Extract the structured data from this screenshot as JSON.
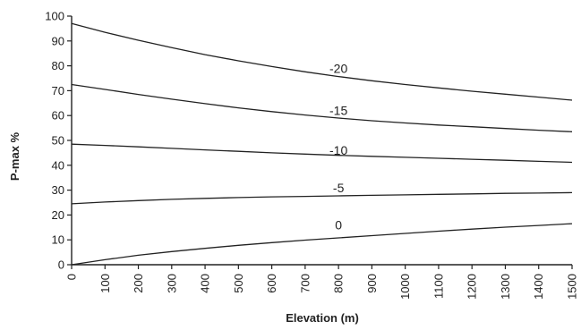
{
  "chart_data": {
    "type": "line",
    "title": "",
    "xlabel": "Elevation (m)",
    "ylabel": "P-max  %",
    "xlim": [
      0,
      1500
    ],
    "ylim": [
      0,
      100
    ],
    "x_ticks": [
      "0",
      "100",
      "200",
      "300",
      "400",
      "500",
      "600",
      "700",
      "800",
      "900",
      "1000",
      "1100",
      "1200",
      "1300",
      "1400",
      "1500"
    ],
    "y_ticks": [
      "0",
      "10",
      "20",
      "30",
      "40",
      "50",
      "60",
      "70",
      "80",
      "90",
      "100"
    ],
    "grid": false,
    "legend": "none",
    "x": [
      0,
      100,
      200,
      300,
      400,
      500,
      600,
      700,
      800,
      900,
      1000,
      1100,
      1200,
      1300,
      1400,
      1500
    ],
    "series": [
      {
        "name": "-20",
        "label_at": [
          800,
          79
        ],
        "values": [
          97,
          93.5,
          90.3,
          87.3,
          84.5,
          82,
          79.7,
          77.6,
          75.7,
          74,
          72.5,
          71.1,
          69.8,
          68.6,
          67.4,
          66.2
        ]
      },
      {
        "name": "-15",
        "label_at": [
          800,
          62
        ],
        "values": [
          72.5,
          70.5,
          68.5,
          66.6,
          64.8,
          63.1,
          61.6,
          60.2,
          59,
          57.9,
          57,
          56.2,
          55.5,
          54.8,
          54.1,
          53.5
        ]
      },
      {
        "name": "-10",
        "label_at": [
          800,
          46
        ],
        "values": [
          48.5,
          48,
          47.4,
          46.8,
          46.2,
          45.6,
          45,
          44.5,
          44,
          43.6,
          43.2,
          42.8,
          42.4,
          42,
          41.6,
          41.2
        ]
      },
      {
        "name": "-5",
        "label_at": [
          800,
          31
        ],
        "values": [
          24.5,
          25.2,
          25.8,
          26.3,
          26.7,
          27,
          27.3,
          27.5,
          27.7,
          27.9,
          28.1,
          28.3,
          28.5,
          28.7,
          28.8,
          29
        ]
      },
      {
        "name": "0",
        "label_at": [
          800,
          16
        ],
        "values": [
          0,
          2,
          3.8,
          5.3,
          6.6,
          7.8,
          8.9,
          9.9,
          10.8,
          11.7,
          12.6,
          13.5,
          14.3,
          15.1,
          15.8,
          16.5
        ]
      }
    ]
  }
}
